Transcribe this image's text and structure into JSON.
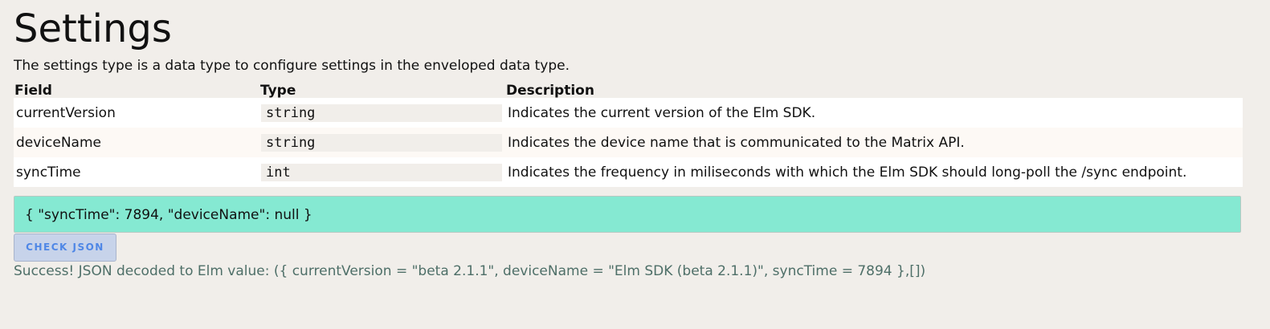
{
  "page": {
    "title": "Settings",
    "intro": "The settings type is a data type to configure settings in the enveloped data type."
  },
  "table": {
    "headers": [
      "Field",
      "Type",
      "Description"
    ],
    "rows": [
      {
        "field": "currentVersion",
        "type": "string",
        "description": "Indicates the current version of the Elm SDK."
      },
      {
        "field": "deviceName",
        "type": "string",
        "description": "Indicates the device name that is communicated to the Matrix API."
      },
      {
        "field": "syncTime",
        "type": "int",
        "description": "Indicates the frequency in miliseconds with which the Elm SDK should long-poll the /sync endpoint."
      }
    ]
  },
  "json_input": {
    "value": "{ \"syncTime\": 7894, \"deviceName\": null }"
  },
  "check_button": {
    "label": "CHECK JSON"
  },
  "result": {
    "text": "Success! JSON decoded to Elm value: ({ currentVersion = \"beta 2.1.1\", deviceName = \"Elm SDK (beta 2.1.1)\", syncTime = 7894 },[])"
  },
  "colors": {
    "input_bg": "#85e9d2",
    "button_bg": "#c7d3ea",
    "button_text": "#4f87e6",
    "result_text": "#4e6f68"
  }
}
